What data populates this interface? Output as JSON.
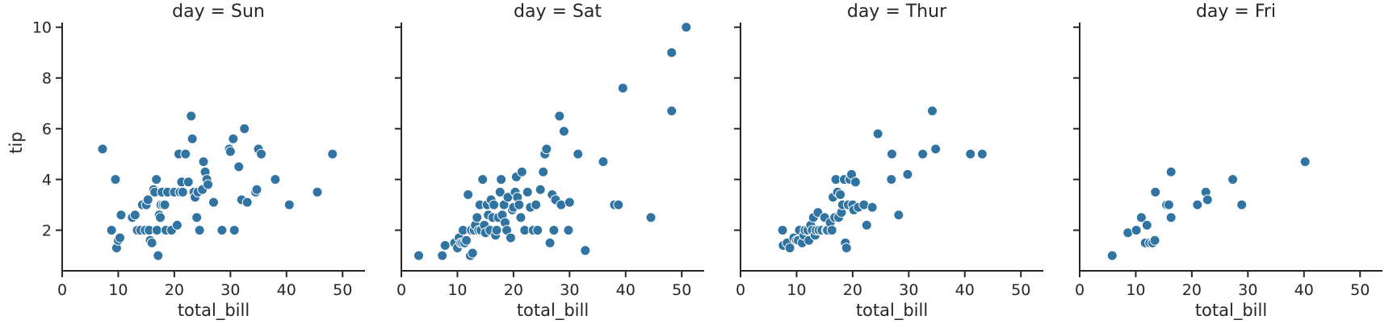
{
  "chart_data": {
    "type": "scatter",
    "xlabel": "total_bill",
    "ylabel": "tip",
    "xlim": [
      0,
      54
    ],
    "ylim": [
      0.4,
      10.5
    ],
    "xticks": [
      0,
      10,
      20,
      30,
      40,
      50
    ],
    "yticks": [
      2,
      4,
      6,
      8,
      10
    ],
    "grid": false,
    "colors": {
      "point": "#3274a1"
    },
    "panels": [
      {
        "title": "day = Sun",
        "points": [
          [
            7.2,
            5.2
          ],
          [
            9.5,
            4.0
          ],
          [
            8.8,
            2.0
          ],
          [
            9.7,
            1.3
          ],
          [
            10.0,
            1.6
          ],
          [
            10.3,
            1.7
          ],
          [
            10.5,
            2.6
          ],
          [
            12.5,
            2.5
          ],
          [
            13.0,
            2.6
          ],
          [
            13.4,
            2.0
          ],
          [
            14.0,
            2.0
          ],
          [
            14.3,
            3.0
          ],
          [
            14.8,
            2.0
          ],
          [
            15.0,
            3.0
          ],
          [
            15.3,
            3.2
          ],
          [
            15.5,
            2.0
          ],
          [
            15.7,
            1.6
          ],
          [
            16.0,
            1.5
          ],
          [
            16.3,
            3.6
          ],
          [
            16.5,
            3.5
          ],
          [
            16.8,
            4.0
          ],
          [
            16.9,
            2.0
          ],
          [
            17.1,
            1.0
          ],
          [
            17.3,
            2.6
          ],
          [
            17.5,
            2.5
          ],
          [
            17.6,
            3.0
          ],
          [
            17.8,
            3.5
          ],
          [
            18.0,
            3.0
          ],
          [
            18.3,
            3.0
          ],
          [
            18.5,
            2.0
          ],
          [
            18.8,
            3.5
          ],
          [
            19.5,
            2.0
          ],
          [
            20.0,
            3.5
          ],
          [
            20.5,
            2.2
          ],
          [
            20.8,
            5.0
          ],
          [
            21.0,
            3.5
          ],
          [
            21.3,
            3.9
          ],
          [
            21.5,
            3.5
          ],
          [
            22.0,
            5.0
          ],
          [
            22.5,
            3.9
          ],
          [
            23.0,
            6.5
          ],
          [
            23.2,
            5.6
          ],
          [
            23.5,
            3.5
          ],
          [
            23.7,
            3.3
          ],
          [
            24.0,
            2.5
          ],
          [
            24.2,
            3.5
          ],
          [
            24.5,
            2.0
          ],
          [
            25.0,
            3.6
          ],
          [
            25.2,
            4.7
          ],
          [
            25.5,
            4.3
          ],
          [
            25.8,
            4.0
          ],
          [
            26.0,
            3.8
          ],
          [
            27.0,
            3.1
          ],
          [
            28.5,
            2.0
          ],
          [
            29.8,
            5.2
          ],
          [
            30.0,
            5.1
          ],
          [
            30.5,
            5.6
          ],
          [
            30.7,
            2.0
          ],
          [
            31.5,
            4.5
          ],
          [
            32.0,
            3.2
          ],
          [
            32.5,
            6.0
          ],
          [
            33.0,
            3.1
          ],
          [
            34.5,
            3.5
          ],
          [
            34.7,
            3.6
          ],
          [
            35.0,
            5.2
          ],
          [
            35.5,
            5.0
          ],
          [
            38.0,
            4.0
          ],
          [
            40.5,
            3.0
          ],
          [
            45.5,
            3.5
          ],
          [
            48.2,
            5.0
          ]
        ]
      },
      {
        "title": "day = Sat",
        "points": [
          [
            3.1,
            1.0
          ],
          [
            7.3,
            1.0
          ],
          [
            7.8,
            1.4
          ],
          [
            9.5,
            1.5
          ],
          [
            10.0,
            1.3
          ],
          [
            10.3,
            1.7
          ],
          [
            10.6,
            1.5
          ],
          [
            10.9,
            1.5
          ],
          [
            11.0,
            2.0
          ],
          [
            11.3,
            1.5
          ],
          [
            11.6,
            1.6
          ],
          [
            11.9,
            3.4
          ],
          [
            12.3,
            1.0
          ],
          [
            12.5,
            2.0
          ],
          [
            12.7,
            1.1
          ],
          [
            13.0,
            2.0
          ],
          [
            13.2,
            2.2
          ],
          [
            13.5,
            2.5
          ],
          [
            13.8,
            2.0
          ],
          [
            14.0,
            3.0
          ],
          [
            14.2,
            2.0
          ],
          [
            14.5,
            4.0
          ],
          [
            14.8,
            2.2
          ],
          [
            15.0,
            1.9
          ],
          [
            15.3,
            3.0
          ],
          [
            15.5,
            2.6
          ],
          [
            15.8,
            2.0
          ],
          [
            16.0,
            3.2
          ],
          [
            16.3,
            2.5
          ],
          [
            16.5,
            3.0
          ],
          [
            16.8,
            1.8
          ],
          [
            17.0,
            2.0
          ],
          [
            17.3,
            2.5
          ],
          [
            17.6,
            3.5
          ],
          [
            17.8,
            4.0
          ],
          [
            18.0,
            2.6
          ],
          [
            18.3,
            3.0
          ],
          [
            18.5,
            2.3
          ],
          [
            18.8,
            2.0
          ],
          [
            19.0,
            3.3
          ],
          [
            19.5,
            1.7
          ],
          [
            19.8,
            2.8
          ],
          [
            20.0,
            2.9
          ],
          [
            20.3,
            3.5
          ],
          [
            20.5,
            4.1
          ],
          [
            20.7,
            3.3
          ],
          [
            21.0,
            3.0
          ],
          [
            21.3,
            2.5
          ],
          [
            21.5,
            4.3
          ],
          [
            22.0,
            2.0
          ],
          [
            22.5,
            3.5
          ],
          [
            23.0,
            2.9
          ],
          [
            23.5,
            2.0
          ],
          [
            24.0,
            3.0
          ],
          [
            24.3,
            2.0
          ],
          [
            24.8,
            3.6
          ],
          [
            25.3,
            4.3
          ],
          [
            25.6,
            5.0
          ],
          [
            25.9,
            5.2
          ],
          [
            26.5,
            1.5
          ],
          [
            26.9,
            3.4
          ],
          [
            27.2,
            2.0
          ],
          [
            27.5,
            3.2
          ],
          [
            28.2,
            6.5
          ],
          [
            28.5,
            3.0
          ],
          [
            29.0,
            5.9
          ],
          [
            29.8,
            2.0
          ],
          [
            30.0,
            3.1
          ],
          [
            31.5,
            5.0
          ],
          [
            32.8,
            1.2
          ],
          [
            36.0,
            4.7
          ],
          [
            38.0,
            3.0
          ],
          [
            38.7,
            3.0
          ],
          [
            39.5,
            7.6
          ],
          [
            44.5,
            2.5
          ],
          [
            48.2,
            9.0
          ],
          [
            48.2,
            6.7
          ],
          [
            50.8,
            10.0
          ]
        ]
      },
      {
        "title": "day = Thur",
        "points": [
          [
            7.5,
            2.0
          ],
          [
            7.6,
            1.4
          ],
          [
            8.3,
            1.5
          ],
          [
            8.8,
            1.3
          ],
          [
            9.5,
            1.7
          ],
          [
            10.0,
            1.6
          ],
          [
            10.3,
            1.6
          ],
          [
            10.5,
            2.0
          ],
          [
            11.0,
            1.5
          ],
          [
            11.3,
            1.8
          ],
          [
            11.5,
            2.0
          ],
          [
            12.0,
            2.0
          ],
          [
            12.2,
            1.6
          ],
          [
            12.5,
            2.2
          ],
          [
            12.8,
            2.0
          ],
          [
            13.0,
            2.5
          ],
          [
            13.3,
            1.8
          ],
          [
            13.5,
            2.0
          ],
          [
            13.8,
            2.7
          ],
          [
            14.0,
            2.0
          ],
          [
            14.5,
            2.0
          ],
          [
            15.0,
            2.5
          ],
          [
            15.3,
            2.0
          ],
          [
            15.5,
            2.0
          ],
          [
            16.0,
            2.3
          ],
          [
            16.3,
            2.0
          ],
          [
            16.5,
            3.3
          ],
          [
            16.8,
            2.5
          ],
          [
            17.0,
            4.0
          ],
          [
            17.3,
            3.5
          ],
          [
            17.5,
            2.5
          ],
          [
            17.8,
            3.4
          ],
          [
            18.0,
            2.7
          ],
          [
            18.2,
            3.0
          ],
          [
            18.5,
            4.0
          ],
          [
            18.7,
            1.5
          ],
          [
            18.9,
            1.3
          ],
          [
            19.2,
            3.0
          ],
          [
            19.5,
            4.0
          ],
          [
            19.8,
            4.2
          ],
          [
            20.0,
            3.0
          ],
          [
            20.2,
            2.8
          ],
          [
            20.5,
            3.9
          ],
          [
            21.0,
            2.9
          ],
          [
            22.0,
            3.0
          ],
          [
            22.5,
            2.2
          ],
          [
            23.5,
            2.9
          ],
          [
            24.5,
            5.8
          ],
          [
            26.9,
            4.0
          ],
          [
            27.0,
            5.0
          ],
          [
            28.2,
            2.6
          ],
          [
            29.8,
            4.2
          ],
          [
            32.5,
            5.0
          ],
          [
            34.2,
            6.7
          ],
          [
            34.8,
            5.2
          ],
          [
            41.0,
            5.0
          ],
          [
            43.1,
            5.0
          ]
        ]
      },
      {
        "title": "day = Fri",
        "points": [
          [
            5.8,
            1.0
          ],
          [
            8.6,
            1.9
          ],
          [
            10.1,
            2.0
          ],
          [
            11.0,
            2.5
          ],
          [
            11.7,
            1.5
          ],
          [
            12.0,
            2.2
          ],
          [
            12.5,
            1.5
          ],
          [
            13.0,
            1.5
          ],
          [
            13.4,
            1.6
          ],
          [
            13.5,
            3.5
          ],
          [
            15.5,
            3.0
          ],
          [
            15.9,
            3.0
          ],
          [
            16.3,
            2.5
          ],
          [
            16.3,
            4.3
          ],
          [
            21.0,
            3.0
          ],
          [
            22.5,
            3.5
          ],
          [
            22.8,
            3.2
          ],
          [
            27.3,
            4.0
          ],
          [
            28.9,
            3.0
          ],
          [
            40.2,
            4.7
          ]
        ]
      }
    ]
  }
}
